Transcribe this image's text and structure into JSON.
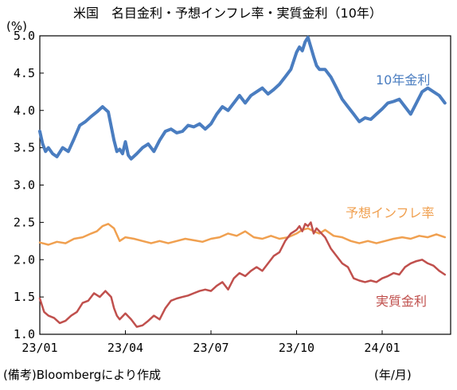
{
  "chart_data": {
    "type": "line",
    "title": "米国　名目金利・予想インフレ率・実質金利（10年）",
    "ylabel": "(%)",
    "xlabel": "",
    "x_unit": "(年/月)",
    "ylim": [
      1.0,
      5.0
    ],
    "yticks": [
      "1.0",
      "1.5",
      "2.0",
      "2.5",
      "3.0",
      "3.5",
      "4.0",
      "4.5",
      "5.0"
    ],
    "xticks": [
      "23/01",
      "23/04",
      "23/07",
      "23/10",
      "24/01"
    ],
    "xtick_positions": [
      0,
      3,
      6,
      9,
      12
    ],
    "xlim": [
      0,
      14.4
    ],
    "grid": false,
    "legend": "inline labels",
    "source": "(備考)Bloombergにより作成",
    "series": [
      {
        "name": "10年金利",
        "color": "#4a7dc0",
        "x": [
          0,
          0.1,
          0.2,
          0.3,
          0.45,
          0.6,
          0.8,
          1.0,
          1.2,
          1.4,
          1.6,
          1.8,
          2.0,
          2.2,
          2.4,
          2.6,
          2.7,
          2.8,
          2.9,
          3.0,
          3.1,
          3.2,
          3.4,
          3.6,
          3.8,
          4.0,
          4.2,
          4.4,
          4.6,
          4.8,
          5.0,
          5.2,
          5.4,
          5.6,
          5.8,
          6.0,
          6.2,
          6.4,
          6.6,
          6.8,
          7.0,
          7.2,
          7.4,
          7.6,
          7.8,
          8.0,
          8.2,
          8.4,
          8.6,
          8.8,
          9.0,
          9.1,
          9.2,
          9.3,
          9.4,
          9.5,
          9.6,
          9.7,
          9.8,
          10.0,
          10.2,
          10.4,
          10.6,
          10.8,
          11.0,
          11.2,
          11.4,
          11.6,
          11.8,
          12.0,
          12.2,
          12.4,
          12.6,
          12.8,
          13.0,
          13.2,
          13.4,
          13.6,
          13.8,
          14.0,
          14.2
        ],
        "values": [
          3.72,
          3.55,
          3.45,
          3.5,
          3.42,
          3.38,
          3.5,
          3.45,
          3.62,
          3.8,
          3.85,
          3.92,
          3.98,
          4.05,
          3.98,
          3.6,
          3.45,
          3.48,
          3.42,
          3.58,
          3.4,
          3.35,
          3.42,
          3.5,
          3.55,
          3.45,
          3.6,
          3.72,
          3.75,
          3.7,
          3.72,
          3.8,
          3.78,
          3.82,
          3.75,
          3.82,
          3.95,
          4.05,
          4.0,
          4.1,
          4.2,
          4.1,
          4.2,
          4.25,
          4.3,
          4.22,
          4.28,
          4.35,
          4.45,
          4.55,
          4.78,
          4.85,
          4.8,
          4.92,
          4.98,
          4.85,
          4.72,
          4.6,
          4.55,
          4.55,
          4.45,
          4.3,
          4.15,
          4.05,
          3.95,
          3.85,
          3.9,
          3.88,
          3.95,
          4.02,
          4.1,
          4.12,
          4.15,
          4.05,
          3.95,
          4.1,
          4.25,
          4.3,
          4.25,
          4.2,
          4.1
        ]
      },
      {
        "name": "予想インフレ率",
        "color": "#f0a050",
        "x": [
          0,
          0.3,
          0.6,
          0.9,
          1.2,
          1.5,
          1.8,
          2.0,
          2.2,
          2.4,
          2.6,
          2.8,
          3.0,
          3.3,
          3.6,
          3.9,
          4.2,
          4.5,
          4.8,
          5.1,
          5.4,
          5.7,
          6.0,
          6.3,
          6.6,
          6.9,
          7.2,
          7.5,
          7.8,
          8.1,
          8.4,
          8.7,
          9.0,
          9.2,
          9.4,
          9.6,
          9.8,
          10.0,
          10.3,
          10.6,
          10.9,
          11.2,
          11.5,
          11.8,
          12.1,
          12.4,
          12.7,
          13.0,
          13.3,
          13.6,
          13.9,
          14.2
        ],
        "values": [
          2.23,
          2.2,
          2.24,
          2.22,
          2.28,
          2.3,
          2.35,
          2.38,
          2.45,
          2.48,
          2.42,
          2.25,
          2.3,
          2.28,
          2.25,
          2.22,
          2.25,
          2.22,
          2.25,
          2.28,
          2.26,
          2.24,
          2.28,
          2.3,
          2.35,
          2.32,
          2.38,
          2.3,
          2.28,
          2.32,
          2.28,
          2.3,
          2.35,
          2.4,
          2.42,
          2.38,
          2.35,
          2.4,
          2.32,
          2.3,
          2.25,
          2.22,
          2.25,
          2.22,
          2.25,
          2.28,
          2.3,
          2.28,
          2.32,
          2.3,
          2.34,
          2.3
        ]
      },
      {
        "name": "実質金利",
        "color": "#c0504d",
        "x": [
          0,
          0.15,
          0.3,
          0.5,
          0.7,
          0.9,
          1.1,
          1.3,
          1.5,
          1.7,
          1.9,
          2.1,
          2.3,
          2.5,
          2.6,
          2.7,
          2.8,
          3.0,
          3.2,
          3.4,
          3.6,
          3.8,
          4.0,
          4.2,
          4.4,
          4.6,
          4.8,
          5.0,
          5.2,
          5.4,
          5.6,
          5.8,
          6.0,
          6.2,
          6.4,
          6.6,
          6.8,
          7.0,
          7.2,
          7.4,
          7.6,
          7.8,
          8.0,
          8.2,
          8.4,
          8.6,
          8.8,
          9.0,
          9.1,
          9.2,
          9.3,
          9.4,
          9.5,
          9.6,
          9.7,
          9.8,
          10.0,
          10.2,
          10.4,
          10.6,
          10.8,
          11.0,
          11.2,
          11.4,
          11.6,
          11.8,
          12.0,
          12.2,
          12.4,
          12.6,
          12.8,
          13.0,
          13.2,
          13.4,
          13.6,
          13.8,
          14.0,
          14.2
        ],
        "values": [
          1.48,
          1.3,
          1.25,
          1.22,
          1.15,
          1.18,
          1.25,
          1.3,
          1.42,
          1.45,
          1.55,
          1.5,
          1.58,
          1.5,
          1.35,
          1.25,
          1.2,
          1.28,
          1.2,
          1.1,
          1.12,
          1.18,
          1.25,
          1.2,
          1.35,
          1.45,
          1.48,
          1.5,
          1.52,
          1.55,
          1.58,
          1.6,
          1.58,
          1.65,
          1.7,
          1.6,
          1.75,
          1.82,
          1.78,
          1.85,
          1.9,
          1.85,
          1.95,
          2.05,
          2.1,
          2.25,
          2.35,
          2.4,
          2.45,
          2.38,
          2.48,
          2.45,
          2.5,
          2.35,
          2.42,
          2.38,
          2.3,
          2.15,
          2.05,
          1.95,
          1.9,
          1.75,
          1.72,
          1.7,
          1.72,
          1.7,
          1.75,
          1.78,
          1.82,
          1.8,
          1.9,
          1.95,
          1.98,
          2.0,
          1.95,
          1.92,
          1.85,
          1.8
        ]
      }
    ]
  }
}
